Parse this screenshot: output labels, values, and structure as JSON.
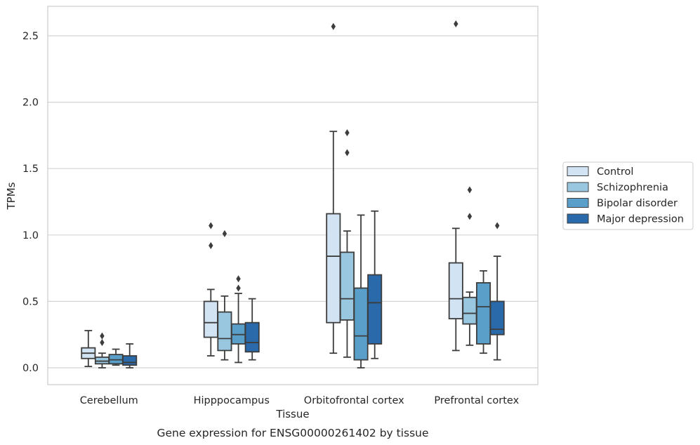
{
  "caption": "Gene expression for ENSG00000261402 by tissue",
  "chart_data": {
    "type": "boxplot",
    "title": "",
    "xlabel": "Tissue",
    "ylabel": "TPMs",
    "ylim": [
      -0.12,
      2.72
    ],
    "yticks": [
      0.0,
      0.5,
      1.0,
      1.5,
      2.0,
      2.5
    ],
    "ytick_labels": [
      "0.0",
      "0.5",
      "1.0",
      "1.5",
      "2.0",
      "2.5"
    ],
    "grid": "horizontal",
    "legend_position": "outside-right",
    "categories": [
      "Cerebellum",
      "Hipppocampus",
      "Orbitofrontal cortex",
      "Prefrontal cortex"
    ],
    "series": [
      {
        "name": "Control",
        "color": "#d2e3f3",
        "boxes": [
          {
            "whislo": 0.01,
            "q1": 0.07,
            "med": 0.11,
            "q3": 0.15,
            "whishi": 0.28,
            "fliers": []
          },
          {
            "whislo": 0.09,
            "q1": 0.23,
            "med": 0.34,
            "q3": 0.5,
            "whishi": 0.59,
            "fliers": [
              0.92,
              1.07
            ]
          },
          {
            "whislo": 0.11,
            "q1": 0.34,
            "med": 0.84,
            "q3": 1.16,
            "whishi": 1.78,
            "fliers": [
              2.57
            ]
          },
          {
            "whislo": 0.13,
            "q1": 0.37,
            "med": 0.52,
            "q3": 0.79,
            "whishi": 1.05,
            "fliers": [
              2.59
            ]
          }
        ]
      },
      {
        "name": "Schizophrenia",
        "color": "#9ac7e0",
        "boxes": [
          {
            "whislo": 0.0,
            "q1": 0.03,
            "med": 0.05,
            "q3": 0.08,
            "whishi": 0.11,
            "fliers": [
              0.19,
              0.24
            ]
          },
          {
            "whislo": 0.06,
            "q1": 0.13,
            "med": 0.22,
            "q3": 0.42,
            "whishi": 0.54,
            "fliers": [
              1.01
            ]
          },
          {
            "whislo": 0.08,
            "q1": 0.36,
            "med": 0.52,
            "q3": 0.87,
            "whishi": 1.03,
            "fliers": [
              1.62,
              1.77
            ]
          },
          {
            "whislo": 0.17,
            "q1": 0.33,
            "med": 0.41,
            "q3": 0.53,
            "whishi": 0.57,
            "fliers": [
              1.14,
              1.34
            ]
          }
        ]
      },
      {
        "name": "Bipolar disorder",
        "color": "#5a9fc9",
        "boxes": [
          {
            "whislo": 0.02,
            "q1": 0.03,
            "med": 0.06,
            "q3": 0.1,
            "whishi": 0.14,
            "fliers": []
          },
          {
            "whislo": 0.04,
            "q1": 0.18,
            "med": 0.25,
            "q3": 0.33,
            "whishi": 0.56,
            "fliers": [
              0.6,
              0.67
            ]
          },
          {
            "whislo": 0.0,
            "q1": 0.06,
            "med": 0.24,
            "q3": 0.6,
            "whishi": 1.15,
            "fliers": []
          },
          {
            "whislo": 0.11,
            "q1": 0.18,
            "med": 0.46,
            "q3": 0.64,
            "whishi": 0.73,
            "fliers": []
          }
        ]
      },
      {
        "name": "Major depression",
        "color": "#2a6aab",
        "boxes": [
          {
            "whislo": 0.0,
            "q1": 0.02,
            "med": 0.04,
            "q3": 0.09,
            "whishi": 0.18,
            "fliers": []
          },
          {
            "whislo": 0.06,
            "q1": 0.12,
            "med": 0.19,
            "q3": 0.34,
            "whishi": 0.52,
            "fliers": []
          },
          {
            "whislo": 0.07,
            "q1": 0.18,
            "med": 0.49,
            "q3": 0.7,
            "whishi": 1.18,
            "fliers": []
          },
          {
            "whislo": 0.06,
            "q1": 0.25,
            "med": 0.29,
            "q3": 0.5,
            "whishi": 0.84,
            "fliers": [
              1.07
            ]
          }
        ]
      }
    ]
  }
}
